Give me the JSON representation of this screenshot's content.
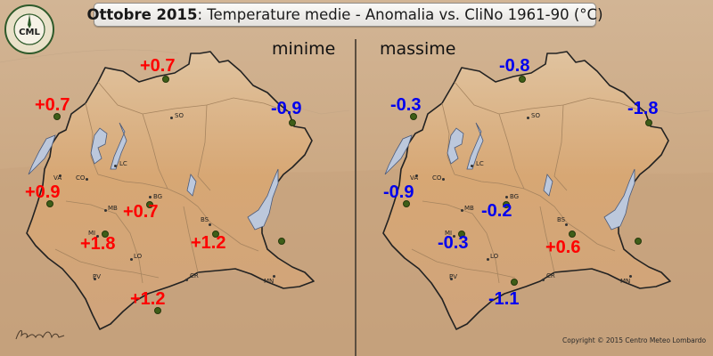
{
  "title": {
    "bold": "Ottobre 2015",
    "rest": ": Temperature medie - Anomalia vs. CliNo 1961-90 (°C)"
  },
  "logo": {
    "text": "CML",
    "ring_text": "CENTRO METEO LOMBARDO",
    "icon": "cml-logo-icon"
  },
  "panels": [
    {
      "label": "minime",
      "values": [
        {
          "text": "+0.7",
          "color": "#ff0000"
        },
        {
          "text": "+0.7",
          "color": "#ff0000"
        },
        {
          "text": "-0.9",
          "color": "#0000ee"
        },
        {
          "text": "+0.9",
          "color": "#ff0000"
        },
        {
          "text": "+0.7",
          "color": "#ff0000"
        },
        {
          "text": "+1.8",
          "color": "#ff0000"
        },
        {
          "text": "+1.2",
          "color": "#ff0000"
        },
        {
          "text": "+1.2",
          "color": "#ff0000"
        }
      ]
    },
    {
      "label": "massime",
      "values": [
        {
          "text": "-0.8",
          "color": "#0000ee"
        },
        {
          "text": "-0.3",
          "color": "#0000ee"
        },
        {
          "text": "-1.8",
          "color": "#0000ee"
        },
        {
          "text": "-0.9",
          "color": "#0000ee"
        },
        {
          "text": "-0.2",
          "color": "#0000ee"
        },
        {
          "text": "-0.3",
          "color": "#0000ee"
        },
        {
          "text": "+0.6",
          "color": "#ff0000"
        },
        {
          "text": "-1.1",
          "color": "#0000ee"
        }
      ]
    }
  ],
  "cities": [
    "SO",
    "LC",
    "CO",
    "VA",
    "BG",
    "MB",
    "BS",
    "MI",
    "LO",
    "CR",
    "MN",
    "PV"
  ],
  "copyright": "Copyright © 2015 Centro Meteo Lombardo",
  "signature": "Brugnoli",
  "colors": {
    "positive": "#ff0000",
    "negative": "#0000ee",
    "station": "#3e5e18"
  }
}
